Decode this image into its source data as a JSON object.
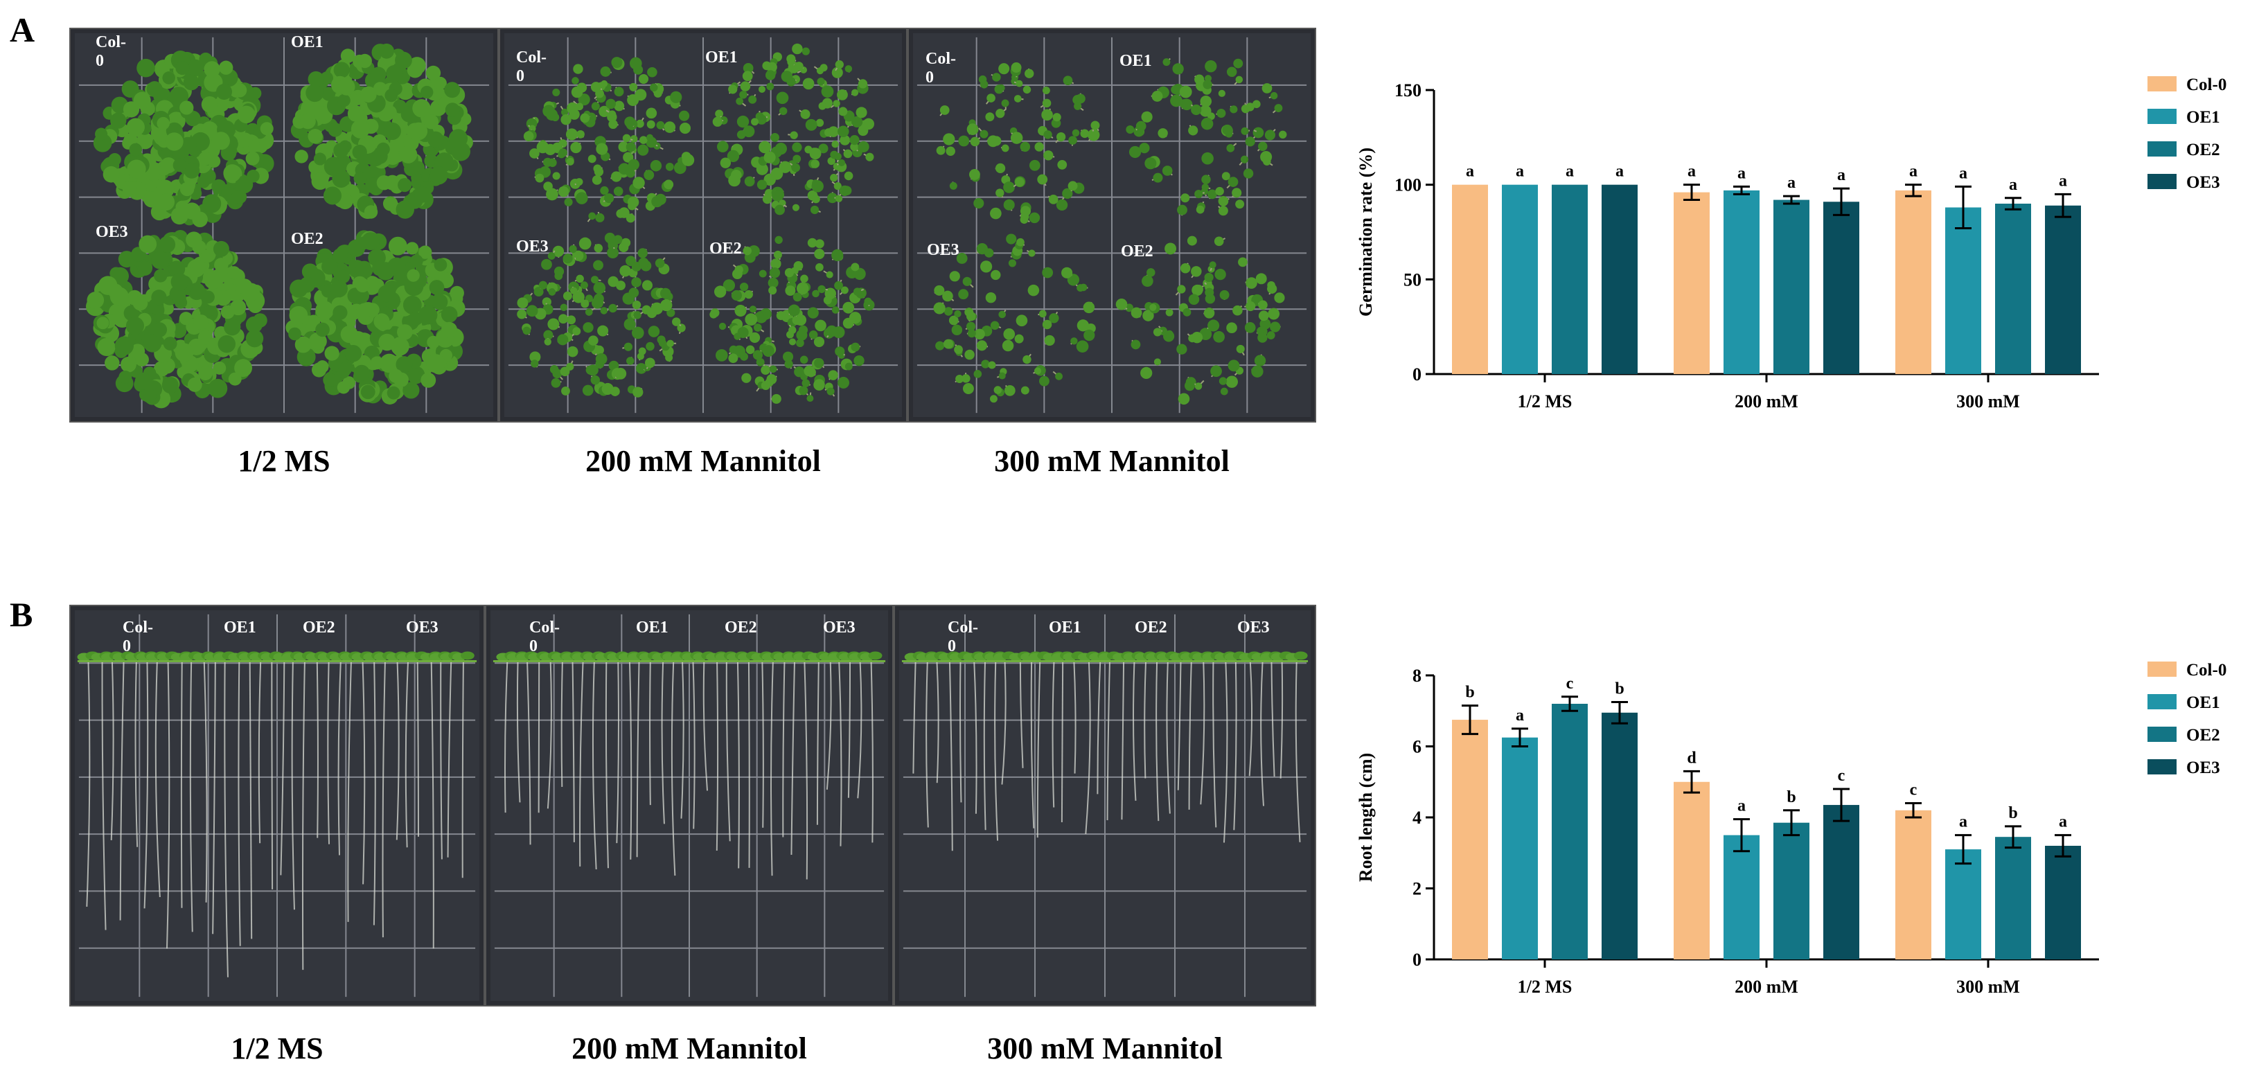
{
  "panelA": {
    "letter": "A",
    "plates": [
      {
        "caption": "1/2 MS",
        "labels": [
          "Col-0",
          "OE1",
          "OE3",
          "OE2"
        ]
      },
      {
        "caption": "200 mM Mannitol",
        "labels": [
          "Col-0",
          "OE1",
          "OE3",
          "OE2"
        ]
      },
      {
        "caption": "300 mM Mannitol",
        "labels": [
          "Col-0",
          "OE1",
          "OE3",
          "OE2"
        ]
      }
    ]
  },
  "panelB": {
    "letter": "B",
    "plates": [
      {
        "caption": "1/2 MS",
        "labels": [
          "Col-0",
          "OE1",
          "OE2",
          "OE3"
        ]
      },
      {
        "caption": "200 mM Mannitol",
        "labels": [
          "Col-0",
          "OE1",
          "OE2",
          "OE3"
        ]
      },
      {
        "caption": "300 mM Mannitol",
        "labels": [
          "Col-0",
          "OE1",
          "OE2",
          "OE3"
        ]
      }
    ]
  },
  "colors": {
    "Col-0": "#F8BC82",
    "OE1": "#2095A8",
    "OE2": "#137585",
    "OE3": "#0A4E5D"
  },
  "chart_data": [
    {
      "type": "bar",
      "title": "",
      "xlabel": "",
      "ylabel": "Germination rate (%)",
      "ylim": [
        0,
        150
      ],
      "yticks": [
        0,
        50,
        100,
        150
      ],
      "categories": [
        "1/2 MS",
        "200 mM",
        "300 mM"
      ],
      "legend_position": "top-right",
      "series": [
        {
          "name": "Col-0",
          "values": [
            100,
            96,
            97
          ],
          "errors": [
            0,
            4,
            3
          ],
          "letters": [
            "a",
            "a",
            "a"
          ]
        },
        {
          "name": "OE1",
          "values": [
            100,
            97,
            88
          ],
          "errors": [
            0,
            2,
            11
          ],
          "letters": [
            "a",
            "a",
            "a"
          ]
        },
        {
          "name": "OE2",
          "values": [
            100,
            92,
            90
          ],
          "errors": [
            0,
            2,
            3
          ],
          "letters": [
            "a",
            "a",
            "a"
          ]
        },
        {
          "name": "OE3",
          "values": [
            100,
            91,
            89
          ],
          "errors": [
            0,
            7,
            6
          ],
          "letters": [
            "a",
            "a",
            "a"
          ]
        }
      ]
    },
    {
      "type": "bar",
      "title": "",
      "xlabel": "",
      "ylabel": "Root length (cm)",
      "ylim": [
        0,
        8
      ],
      "yticks": [
        0,
        2,
        4,
        6,
        8
      ],
      "categories": [
        "1/2 MS",
        "200 mM",
        "300 mM"
      ],
      "legend_position": "top-right",
      "series": [
        {
          "name": "Col-0",
          "values": [
            6.75,
            5.0,
            4.2
          ],
          "errors": [
            0.4,
            0.3,
            0.2
          ],
          "letters": [
            "b",
            "d",
            "c"
          ]
        },
        {
          "name": "OE1",
          "values": [
            6.25,
            3.5,
            3.1
          ],
          "errors": [
            0.25,
            0.45,
            0.4
          ],
          "letters": [
            "a",
            "a",
            "a"
          ]
        },
        {
          "name": "OE2",
          "values": [
            7.2,
            3.85,
            3.45
          ],
          "errors": [
            0.2,
            0.35,
            0.3
          ],
          "letters": [
            "c",
            "b",
            "b"
          ]
        },
        {
          "name": "OE3",
          "values": [
            6.95,
            4.35,
            3.2
          ],
          "errors": [
            0.3,
            0.45,
            0.3
          ],
          "letters": [
            "b",
            "c",
            "a"
          ]
        }
      ]
    }
  ]
}
